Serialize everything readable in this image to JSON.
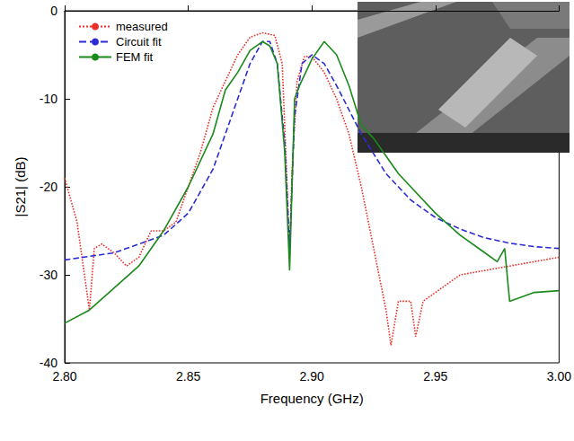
{
  "chart_data": {
    "type": "line",
    "x_label": "Frequency (GHz)",
    "y_label": "|S21| (dB)",
    "xlim": [
      2.8,
      3.0
    ],
    "xticks": [
      {
        "value": 2.8,
        "label": "2.80"
      },
      {
        "value": 2.85,
        "label": "2.85"
      },
      {
        "value": 2.9,
        "label": "2.90"
      },
      {
        "value": 2.95,
        "label": "2.95"
      },
      {
        "value": 3.0,
        "label": "3.00"
      }
    ],
    "ylim": [
      -40,
      0
    ],
    "yticks": [
      -40,
      -30,
      -20,
      -10,
      0
    ],
    "grid": false,
    "legend": "upper left",
    "series": [
      {
        "name": "measured",
        "color": "#e8302a",
        "line_style": "dotted",
        "marker": "none",
        "x": [
          2.8,
          2.805,
          2.81,
          2.812,
          2.815,
          2.82,
          2.825,
          2.83,
          2.835,
          2.84,
          2.845,
          2.85,
          2.855,
          2.86,
          2.865,
          2.87,
          2.875,
          2.88,
          2.885,
          2.888,
          2.89,
          2.891,
          2.892,
          2.894,
          2.897,
          2.9,
          2.905,
          2.91,
          2.915,
          2.92,
          2.925,
          2.93,
          2.932,
          2.935,
          2.94,
          2.942,
          2.945,
          2.95,
          2.955,
          2.96,
          2.97,
          2.98,
          2.99,
          3.0
        ],
        "values": [
          -19,
          -24,
          -34,
          -27,
          -26.5,
          -27.5,
          -29,
          -28,
          -25,
          -25,
          -24,
          -20,
          -16,
          -11,
          -8,
          -5,
          -3,
          -2.5,
          -2.8,
          -6,
          -20,
          -28,
          -18,
          -8,
          -5.2,
          -5.2,
          -7,
          -10,
          -14,
          -20,
          -27,
          -34,
          -38,
          -33,
          -33,
          -37,
          -33,
          -32,
          -31,
          -30,
          -29.5,
          -29,
          -28.5,
          -28
        ]
      },
      {
        "name": "Circuit fit",
        "color": "#2b2bd6",
        "line_style": "dashed",
        "marker": "none",
        "x": [
          2.8,
          2.82,
          2.84,
          2.85,
          2.86,
          2.87,
          2.875,
          2.88,
          2.883,
          2.886,
          2.889,
          2.891,
          2.893,
          2.896,
          2.9,
          2.905,
          2.91,
          2.92,
          2.93,
          2.94,
          2.95,
          2.96,
          2.97,
          2.98,
          2.99,
          3.0
        ],
        "values": [
          -28.3,
          -27.5,
          -25.5,
          -23,
          -18,
          -10,
          -6,
          -3.5,
          -3.5,
          -6,
          -15,
          -27,
          -12,
          -6,
          -5,
          -6,
          -8.5,
          -14,
          -18.5,
          -21.5,
          -23.5,
          -24.8,
          -25.8,
          -26.4,
          -26.8,
          -27
        ]
      },
      {
        "name": "FEM fit",
        "color": "#1a8a1a",
        "line_style": "solid",
        "marker": "none",
        "x": [
          2.8,
          2.81,
          2.82,
          2.83,
          2.84,
          2.85,
          2.86,
          2.865,
          2.87,
          2.875,
          2.88,
          2.883,
          2.886,
          2.889,
          2.891,
          2.893,
          2.895,
          2.9,
          2.905,
          2.91,
          2.915,
          2.92,
          2.925,
          2.93,
          2.935,
          2.94,
          2.95,
          2.96,
          2.97,
          2.975,
          2.978,
          2.98,
          2.99,
          3.0
        ],
        "values": [
          -35.5,
          -34,
          -31.5,
          -29,
          -25,
          -20,
          -14,
          -9,
          -7,
          -4.5,
          -3.5,
          -4,
          -6,
          -16,
          -29.5,
          -10,
          -8.5,
          -5.5,
          -3.5,
          -5,
          -8.5,
          -13,
          -14.5,
          -16.5,
          -18.5,
          -20,
          -23,
          -25.5,
          -27.5,
          -28.5,
          -27,
          -33,
          -32,
          -31.8
        ]
      }
    ]
  }
}
